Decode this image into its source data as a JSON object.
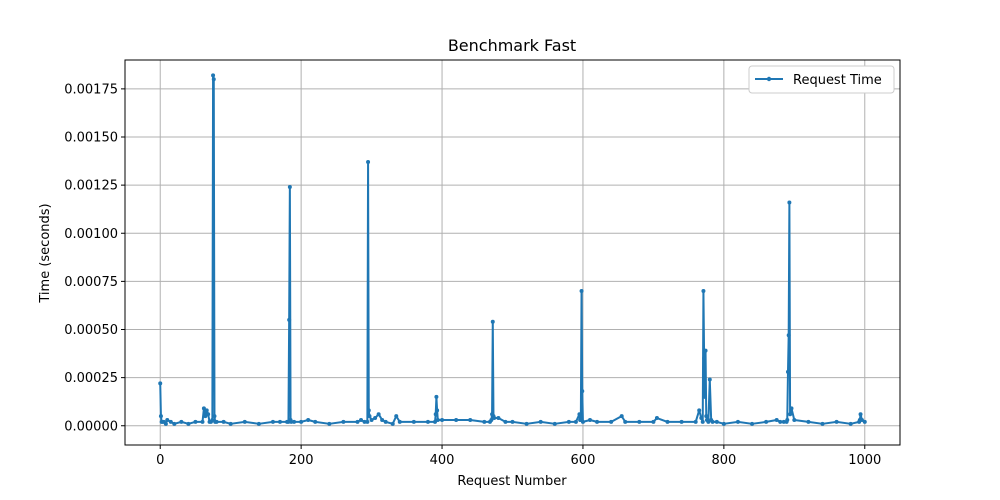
{
  "chart_data": {
    "type": "line",
    "title": "Benchmark Fast",
    "xlabel": "Request Number",
    "ylabel": "Time (seconds)",
    "xlim": [
      -50,
      1050
    ],
    "ylim": [
      -0.0001,
      0.0019
    ],
    "x_ticks": [
      0,
      200,
      400,
      600,
      800,
      1000
    ],
    "x_tick_labels": [
      "0",
      "200",
      "400",
      "600",
      "800",
      "1000"
    ],
    "y_ticks": [
      0.0,
      0.00025,
      0.0005,
      0.00075,
      0.001,
      0.00125,
      0.0015,
      0.00175
    ],
    "y_tick_labels": [
      "0.00000",
      "0.00025",
      "0.00050",
      "0.00075",
      "0.00100",
      "0.00125",
      "0.00150",
      "0.00175"
    ],
    "grid": true,
    "legend_position": "top-right",
    "series": [
      {
        "name": "Request Time",
        "color": "#1f77b4",
        "marker": "dot",
        "x": [
          0,
          1,
          2,
          3,
          5,
          8,
          10,
          15,
          20,
          30,
          40,
          50,
          60,
          62,
          64,
          66,
          68,
          70,
          72,
          74,
          75,
          76,
          77,
          78,
          80,
          90,
          100,
          120,
          140,
          160,
          170,
          180,
          182,
          183,
          184,
          185,
          186,
          190,
          200,
          210,
          220,
          240,
          260,
          280,
          285,
          290,
          294,
          295,
          296,
          297,
          300,
          305,
          310,
          315,
          320,
          330,
          335,
          340,
          360,
          380,
          390,
          391,
          392,
          393,
          394,
          400,
          420,
          440,
          460,
          468,
          470,
          471,
          472,
          473,
          474,
          480,
          490,
          500,
          520,
          540,
          560,
          580,
          590,
          595,
          596,
          597,
          598,
          599,
          600,
          610,
          620,
          640,
          655,
          660,
          680,
          700,
          705,
          720,
          740,
          760,
          765,
          768,
          770,
          771,
          772,
          773,
          774,
          775,
          776,
          778,
          780,
          782,
          784,
          790,
          800,
          820,
          840,
          860,
          875,
          880,
          885,
          889,
          890,
          891,
          892,
          893,
          894,
          896,
          900,
          920,
          940,
          960,
          980,
          992,
          993,
          994,
          996,
          1000
        ],
        "y": [
          0.00022,
          5e-05,
          2e-05,
          2e-05,
          2e-05,
          1e-05,
          3e-05,
          2e-05,
          1e-05,
          2e-05,
          1e-05,
          2e-05,
          2e-05,
          9e-05,
          5e-05,
          8e-05,
          6e-05,
          2e-05,
          2e-05,
          3e-05,
          0.00182,
          0.0018,
          5e-05,
          2e-05,
          2e-05,
          2e-05,
          1e-05,
          2e-05,
          1e-05,
          2e-05,
          2e-05,
          2e-05,
          2e-05,
          0.00055,
          0.00124,
          3e-05,
          2e-05,
          2e-05,
          2e-05,
          3e-05,
          2e-05,
          1e-05,
          2e-05,
          2e-05,
          3e-05,
          2e-05,
          2e-05,
          0.00137,
          8e-05,
          5e-05,
          3e-05,
          4e-05,
          6e-05,
          3e-05,
          2e-05,
          1e-05,
          5e-05,
          2e-05,
          2e-05,
          2e-05,
          2e-05,
          6e-05,
          0.00015,
          8e-05,
          3e-05,
          3e-05,
          3e-05,
          3e-05,
          2e-05,
          2e-05,
          3e-05,
          6e-05,
          0.00054,
          5e-05,
          4e-05,
          4e-05,
          2e-05,
          2e-05,
          1e-05,
          2e-05,
          1e-05,
          2e-05,
          2e-05,
          6e-05,
          3e-05,
          3e-05,
          0.0007,
          0.00018,
          2e-05,
          3e-05,
          2e-05,
          2e-05,
          5e-05,
          2e-05,
          2e-05,
          2e-05,
          4e-05,
          2e-05,
          2e-05,
          2e-05,
          8e-05,
          4e-05,
          2e-05,
          0.0007,
          0.00035,
          0.00015,
          0.00039,
          5e-05,
          3e-05,
          2e-05,
          0.00024,
          3e-05,
          2e-05,
          2e-05,
          1e-05,
          2e-05,
          1e-05,
          2e-05,
          3e-05,
          2e-05,
          2e-05,
          2e-05,
          3e-05,
          0.00028,
          0.00047,
          0.00116,
          6e-05,
          9e-05,
          3e-05,
          2e-05,
          1e-05,
          2e-05,
          1e-05,
          2e-05,
          3e-05,
          6e-05,
          3e-05,
          2e-05
        ]
      }
    ]
  }
}
